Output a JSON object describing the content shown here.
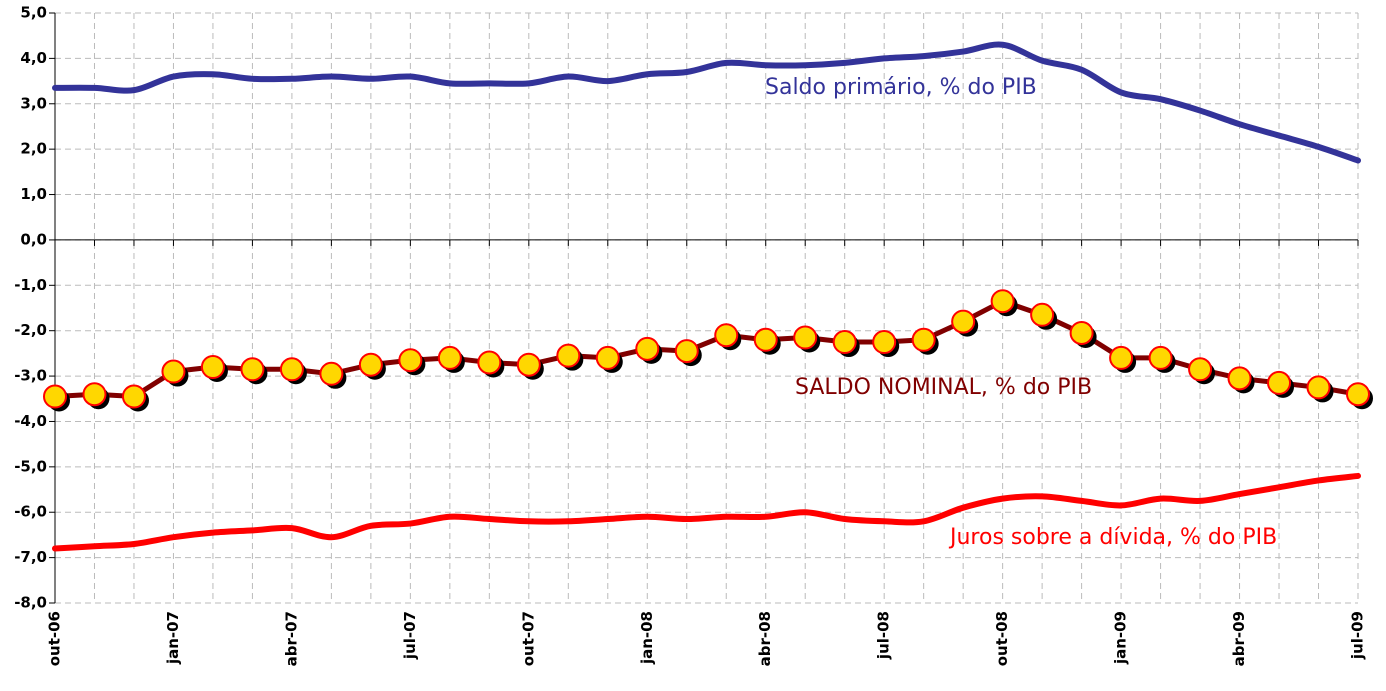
{
  "chart_data": {
    "type": "line",
    "categories": [
      "out-06",
      null,
      null,
      "jan-07",
      null,
      null,
      "abr-07",
      null,
      null,
      "jul-07",
      null,
      null,
      "out-07",
      null,
      null,
      "jan-08",
      null,
      null,
      "abr-08",
      null,
      null,
      "jul-08",
      null,
      null,
      "out-08",
      null,
      null,
      "jan-09",
      null,
      null,
      "abr-09",
      null,
      null,
      "jul-09"
    ],
    "series": [
      {
        "name": "Saldo primário, % do PIB",
        "color": "#333399",
        "markers": false,
        "values": [
          3.35,
          3.35,
          3.3,
          3.6,
          3.65,
          3.55,
          3.55,
          3.6,
          3.55,
          3.6,
          3.45,
          3.45,
          3.45,
          3.6,
          3.5,
          3.65,
          3.7,
          3.9,
          3.85,
          3.85,
          3.9,
          4.0,
          4.05,
          4.15,
          4.3,
          3.95,
          3.75,
          3.25,
          3.1,
          2.85,
          2.55,
          2.3,
          2.05,
          1.75
        ]
      },
      {
        "name": "SALDO NOMINAL, % do PIB",
        "color": "#800000",
        "marker_color": "#ffd700",
        "marker_edge": "#ff0000",
        "markers": true,
        "values": [
          -3.45,
          -3.4,
          -3.45,
          -2.9,
          -2.8,
          -2.85,
          -2.85,
          -2.95,
          -2.75,
          -2.65,
          -2.6,
          -2.7,
          -2.75,
          -2.55,
          -2.6,
          -2.4,
          -2.45,
          -2.1,
          -2.2,
          -2.15,
          -2.25,
          -2.25,
          -2.2,
          -1.8,
          -1.35,
          -1.65,
          -2.05,
          -2.6,
          -2.6,
          -2.85,
          -3.05,
          -3.15,
          -3.25,
          -3.4
        ]
      },
      {
        "name": "Juros sobre a dívida, % do PIB",
        "color": "#ff0000",
        "markers": false,
        "values": [
          -6.8,
          -6.75,
          -6.7,
          -6.55,
          -6.45,
          -6.4,
          -6.35,
          -6.55,
          -6.3,
          -6.25,
          -6.1,
          -6.15,
          -6.2,
          -6.2,
          -6.15,
          -6.1,
          -6.15,
          -6.1,
          -6.1,
          -6.0,
          -6.15,
          -6.2,
          -6.2,
          -5.9,
          -5.7,
          -5.65,
          -5.75,
          -5.85,
          -5.7,
          -5.75,
          -5.6,
          -5.45,
          -5.3,
          -5.2
        ]
      }
    ],
    "ylim": [
      -8,
      5
    ],
    "yticks": [
      {
        "value": 5,
        "label": "5,0"
      },
      {
        "value": 4,
        "label": "4,0"
      },
      {
        "value": 3,
        "label": "3,0"
      },
      {
        "value": 2,
        "label": "2,0"
      },
      {
        "value": 1,
        "label": "1,0"
      },
      {
        "value": 0,
        "label": "0,0"
      },
      {
        "value": -1,
        "label": "-1,0"
      },
      {
        "value": -2,
        "label": "-2,0"
      },
      {
        "value": -3,
        "label": "-3,0"
      },
      {
        "value": -4,
        "label": "-4,0"
      },
      {
        "value": -5,
        "label": "-5,0"
      },
      {
        "value": -6,
        "label": "-6,0"
      },
      {
        "value": -7,
        "label": "-7,0"
      },
      {
        "value": -8,
        "label": "-8,0"
      }
    ],
    "grid": true
  }
}
